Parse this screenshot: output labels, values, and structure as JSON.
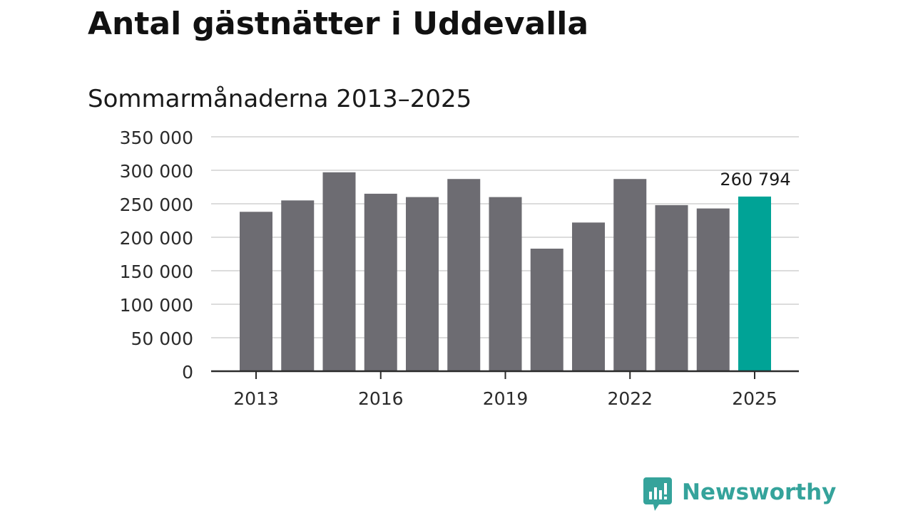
{
  "chart_data": {
    "type": "bar",
    "title": "Antal gästnätter i Uddevalla",
    "subtitle": "Sommarmånaderna 2013–2025",
    "categories": [
      "2013",
      "2014",
      "2015",
      "2016",
      "2017",
      "2018",
      "2019",
      "2020",
      "2021",
      "2022",
      "2023",
      "2024",
      "2025"
    ],
    "values": [
      238000,
      255000,
      297000,
      265000,
      260000,
      287000,
      260000,
      183000,
      222000,
      287000,
      248000,
      243000,
      260794
    ],
    "highlight_index": 12,
    "highlight_label": "260 794",
    "x_tick_labels": [
      "2013",
      "2016",
      "2019",
      "2022",
      "2025"
    ],
    "x_tick_categories": [
      "2013",
      "2016",
      "2019",
      "2022",
      "2025"
    ],
    "y_ticks": [
      0,
      50000,
      100000,
      150000,
      200000,
      250000,
      300000,
      350000
    ],
    "y_tick_labels": [
      "0",
      "50 000",
      "100 000",
      "150 000",
      "200 000",
      "250 000",
      "300 000",
      "350 000"
    ],
    "ylim": [
      0,
      350000
    ],
    "xlabel": "",
    "ylabel": "",
    "grid": true,
    "legend": "none",
    "colors": {
      "bar": "#6d6c72",
      "highlight": "#00a396",
      "grid": "#dcdcdc",
      "axis": "#2b2b2b",
      "text": "#2b2b2b"
    }
  },
  "brand": {
    "name": "Newsworthy",
    "icon": "newsworthy-logo-icon",
    "color": "#35a39b"
  }
}
